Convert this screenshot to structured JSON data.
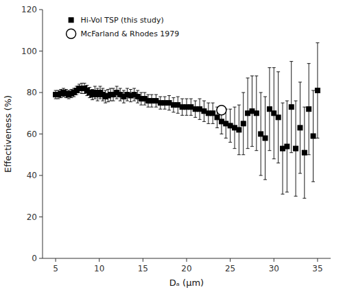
{
  "chart_data": {
    "type": "scatter",
    "xlabel": "Dₐ (μm)",
    "ylabel": "Effectiveness (%)",
    "xlim": [
      3.5,
      36.5
    ],
    "ylim": [
      0,
      120
    ],
    "xticks": [
      5,
      10,
      15,
      20,
      25,
      30,
      35
    ],
    "yticks": [
      0,
      20,
      40,
      60,
      80,
      100,
      120
    ],
    "grid": false,
    "legend": "upper left",
    "series": [
      {
        "name": "Hi-Vol TSP (this study)",
        "color": "#000000",
        "marker": "square",
        "x": [
          5.0,
          5.3,
          5.6,
          5.9,
          6.2,
          6.5,
          6.8,
          7.1,
          7.4,
          7.7,
          8.0,
          8.3,
          8.6,
          8.9,
          9.2,
          9.5,
          9.8,
          10.1,
          10.4,
          10.7,
          11.0,
          11.3,
          11.6,
          12.0,
          12.4,
          12.8,
          13.2,
          13.6,
          14.0,
          14.4,
          14.8,
          15.2,
          15.6,
          16.0,
          16.5,
          17.0,
          17.5,
          18.0,
          18.5,
          19.0,
          19.5,
          20.0,
          20.5,
          21.0,
          21.5,
          22.0,
          22.5,
          23.0,
          23.5,
          24.0,
          24.5,
          25.0,
          25.5,
          26.0,
          26.5,
          27.0,
          27.5,
          28.0,
          28.5,
          29.0,
          29.5,
          30.0,
          30.5,
          31.0,
          31.5,
          32.0,
          32.5,
          33.0,
          33.5,
          34.0,
          34.5,
          35.0
        ],
        "values": [
          79,
          79,
          79.5,
          80,
          79.5,
          79,
          79.5,
          80,
          81,
          82,
          82,
          82,
          81,
          80,
          79,
          80,
          79,
          80,
          79,
          78,
          78.5,
          79,
          79,
          80,
          79,
          78,
          79,
          78.5,
          79,
          78,
          77,
          77,
          76,
          76,
          76,
          75,
          75,
          75,
          74,
          74,
          73,
          73,
          73,
          72,
          72,
          71,
          70,
          70,
          68,
          66,
          65,
          64,
          63,
          62,
          65,
          70,
          71,
          70,
          60,
          58,
          72,
          70,
          68,
          53,
          54,
          73,
          53,
          63,
          51,
          72,
          59,
          81
        ],
        "errors": [
          2,
          2,
          2,
          2,
          2,
          2,
          2,
          2,
          2,
          2,
          2.5,
          2.5,
          2.5,
          2.5,
          2.5,
          3,
          3,
          3,
          3,
          3,
          3,
          3,
          3,
          3,
          3,
          3,
          3,
          3,
          3,
          3,
          3,
          3,
          3,
          3,
          3,
          3,
          3,
          3.5,
          3.5,
          4,
          4,
          4,
          4,
          4,
          5,
          5,
          5,
          5,
          5,
          6,
          7,
          8,
          10,
          12,
          15,
          17,
          17,
          18,
          20,
          20,
          20,
          22,
          22,
          22,
          22,
          22,
          23,
          22,
          22,
          22,
          22,
          23
        ]
      },
      {
        "name": "McFarland & Rhodes 1979",
        "color": "#000000",
        "marker": "open-circle",
        "x": [
          24.0
        ],
        "values": [
          71.5
        ]
      }
    ]
  }
}
